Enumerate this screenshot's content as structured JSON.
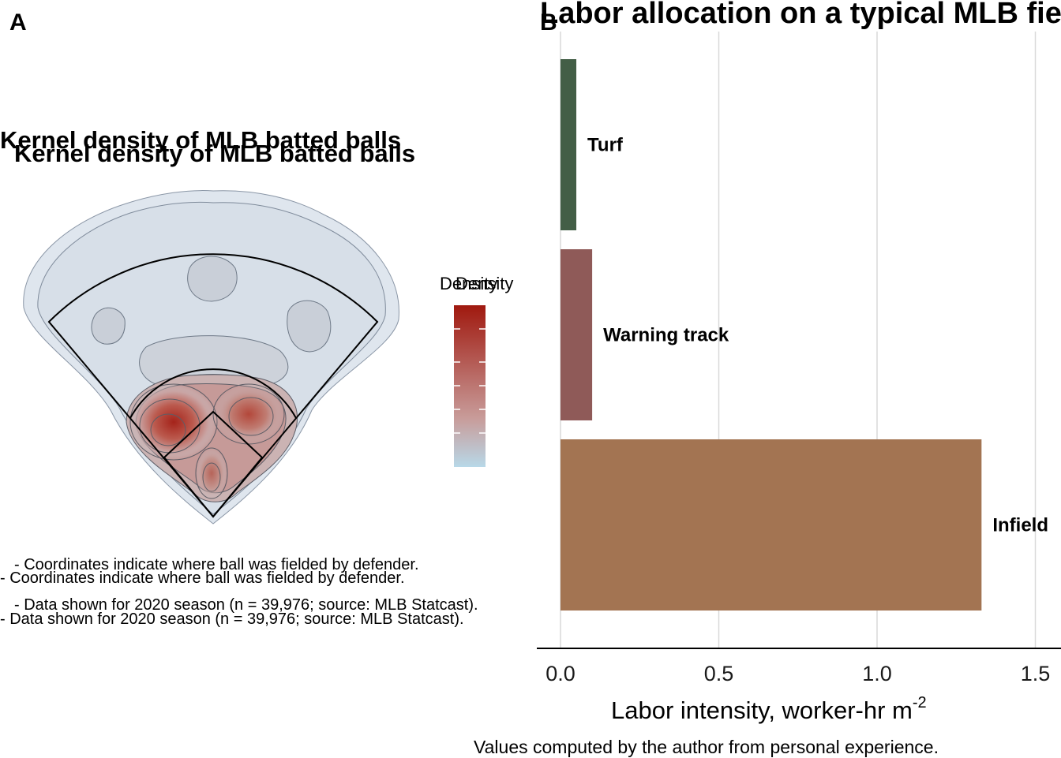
{
  "panel_a": {
    "letter": "A",
    "title": "Kernel density of MLB batted balls",
    "legend_title": "Density",
    "legend_colors": [
      "#a0190f",
      "#c89c9a",
      "#b8d8e8"
    ],
    "notes": [
      "- Coordinates indicate where ball was fielded by defender.",
      "- Data shown for 2020 season (n = 39,976; source: MLB Statcast)."
    ]
  },
  "panel_b": {
    "letter": "B",
    "title": "Labor allocation on a typical MLB field",
    "caption": "Values computed by the author from personal experience."
  },
  "chart_data": [
    {
      "type": "heatmap",
      "title": "Kernel density of MLB batted balls",
      "legend_title": "Density",
      "colors": {
        "high": "#a0190f",
        "mid": "#c89c9a",
        "low": "#b8d8e8"
      }
    },
    {
      "type": "bar",
      "orientation": "horizontal",
      "title": "Labor allocation on a typical MLB field",
      "categories": [
        "Turf",
        "Warning track",
        "Infield"
      ],
      "values": [
        0.05,
        0.1,
        1.33
      ],
      "colors": [
        "#435e46",
        "#8f5a58",
        "#a37452"
      ],
      "xlabel": "Labor intensity, worker-hr m",
      "xlabel_superscript": "-2",
      "xlim": [
        0,
        1.5
      ],
      "xticks": [
        0.0,
        0.5,
        1.0,
        1.5
      ],
      "xtick_labels": [
        "0.0",
        "0.5",
        "1.0",
        "1.5"
      ],
      "grid": true,
      "caption": "Values computed by the author from personal experience."
    }
  ]
}
